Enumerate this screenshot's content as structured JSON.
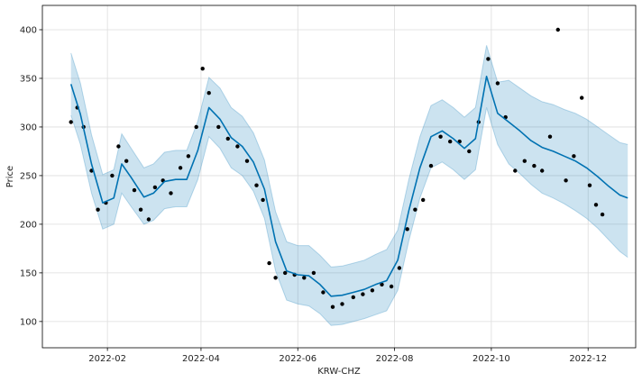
{
  "chart_data": {
    "type": "line",
    "title": "",
    "xlabel": "KRW-CHZ",
    "ylabel": "Price",
    "x_axis_type": "date",
    "xlim": [
      "2021-12-22",
      "2022-12-31"
    ],
    "ylim": [
      73,
      425
    ],
    "grid": true,
    "x_ticks": [
      "2022-02-01",
      "2022-04-01",
      "2022-06-01",
      "2022-08-01",
      "2022-10-01",
      "2022-12-01"
    ],
    "x_tick_labels": [
      "2022-02",
      "2022-04",
      "2022-06",
      "2022-08",
      "2022-10",
      "2022-12"
    ],
    "y_ticks": [
      100,
      150,
      200,
      250,
      300,
      350,
      400
    ],
    "colors": {
      "forecast_line": "#0072B2",
      "interval_fill": "#0072B2",
      "observed_points": "#000000",
      "grid": "#dddddd"
    },
    "series": [
      {
        "kind": "forecast",
        "x": [
          "2022-01-09",
          "2022-01-15",
          "2022-01-22",
          "2022-01-29",
          "2022-02-05",
          "2022-02-10",
          "2022-02-16",
          "2022-02-24",
          "2022-03-02",
          "2022-03-09",
          "2022-03-16",
          "2022-03-23",
          "2022-03-30",
          "2022-04-06",
          "2022-04-13",
          "2022-04-20",
          "2022-04-27",
          "2022-05-04",
          "2022-05-11",
          "2022-05-18",
          "2022-05-25",
          "2022-06-01",
          "2022-06-08",
          "2022-06-15",
          "2022-06-22",
          "2022-06-29",
          "2022-07-06",
          "2022-07-13",
          "2022-07-20",
          "2022-07-27",
          "2022-08-03",
          "2022-08-10",
          "2022-08-17",
          "2022-08-24",
          "2022-08-31",
          "2022-09-07",
          "2022-09-14",
          "2022-09-21",
          "2022-09-28",
          "2022-10-05",
          "2022-10-12",
          "2022-10-19",
          "2022-10-26",
          "2022-11-02",
          "2022-11-09",
          "2022-11-16",
          "2022-11-23",
          "2022-11-30",
          "2022-12-07",
          "2022-12-14",
          "2022-12-21",
          "2022-12-26"
        ],
        "yhat": [
          344,
          313,
          262,
          222,
          227,
          262,
          248,
          228,
          232,
          244,
          246,
          246,
          276,
          320,
          308,
          289,
          280,
          264,
          236,
          182,
          152,
          148,
          147,
          138,
          126,
          127,
          130,
          133,
          138,
          142,
          163,
          214,
          258,
          290,
          296,
          288,
          278,
          288,
          352,
          314,
          305,
          296,
          286,
          279,
          275,
          270,
          265,
          258,
          249,
          239,
          230,
          227
        ],
        "lower": [
          312,
          282,
          232,
          195,
          200,
          232,
          218,
          200,
          204,
          216,
          218,
          218,
          246,
          290,
          278,
          258,
          250,
          234,
          206,
          152,
          122,
          118,
          116,
          108,
          96,
          97,
          100,
          103,
          107,
          111,
          132,
          183,
          227,
          258,
          264,
          256,
          246,
          256,
          320,
          282,
          262,
          252,
          241,
          232,
          227,
          221,
          214,
          206,
          196,
          184,
          172,
          166
        ],
        "upper": [
          376,
          345,
          292,
          251,
          256,
          293,
          278,
          258,
          262,
          274,
          276,
          276,
          306,
          351,
          340,
          320,
          311,
          294,
          266,
          213,
          182,
          178,
          178,
          168,
          156,
          157,
          160,
          163,
          169,
          174,
          194,
          246,
          290,
          322,
          328,
          320,
          310,
          320,
          384,
          346,
          348,
          340,
          332,
          326,
          323,
          318,
          314,
          308,
          300,
          292,
          284,
          282
        ]
      },
      {
        "kind": "observed",
        "x": [
          "2022-01-09",
          "2022-01-13",
          "2022-01-17",
          "2022-01-22",
          "2022-01-26",
          "2022-01-31",
          "2022-02-04",
          "2022-02-08",
          "2022-02-13",
          "2022-02-18",
          "2022-02-22",
          "2022-02-27",
          "2022-03-03",
          "2022-03-08",
          "2022-03-13",
          "2022-03-19",
          "2022-03-24",
          "2022-03-29",
          "2022-04-02",
          "2022-04-06",
          "2022-04-12",
          "2022-04-18",
          "2022-04-24",
          "2022-04-30",
          "2022-05-06",
          "2022-05-10",
          "2022-05-14",
          "2022-05-18",
          "2022-05-24",
          "2022-05-30",
          "2022-06-05",
          "2022-06-11",
          "2022-06-17",
          "2022-06-23",
          "2022-06-29",
          "2022-07-06",
          "2022-07-12",
          "2022-07-18",
          "2022-07-24",
          "2022-07-30",
          "2022-08-04",
          "2022-08-09",
          "2022-08-14",
          "2022-08-19",
          "2022-08-24",
          "2022-08-30",
          "2022-09-05",
          "2022-09-11",
          "2022-09-17",
          "2022-09-23",
          "2022-09-29",
          "2022-10-05",
          "2022-10-10",
          "2022-10-16",
          "2022-10-22",
          "2022-10-28",
          "2022-11-02",
          "2022-11-07",
          "2022-11-12",
          "2022-11-17",
          "2022-11-22",
          "2022-11-27",
          "2022-12-02",
          "2022-12-06",
          "2022-12-10"
        ],
        "y": [
          305,
          320,
          300,
          255,
          215,
          222,
          250,
          280,
          265,
          235,
          215,
          205,
          238,
          245,
          232,
          258,
          270,
          300,
          360,
          335,
          300,
          288,
          280,
          265,
          240,
          225,
          160,
          145,
          150,
          148,
          145,
          150,
          130,
          115,
          118,
          125,
          128,
          132,
          138,
          136,
          155,
          195,
          215,
          225,
          260,
          290,
          285,
          285,
          275,
          305,
          370,
          345,
          310,
          255,
          265,
          260,
          255,
          290,
          400,
          245,
          270,
          330,
          240,
          220,
          210
        ]
      }
    ]
  }
}
